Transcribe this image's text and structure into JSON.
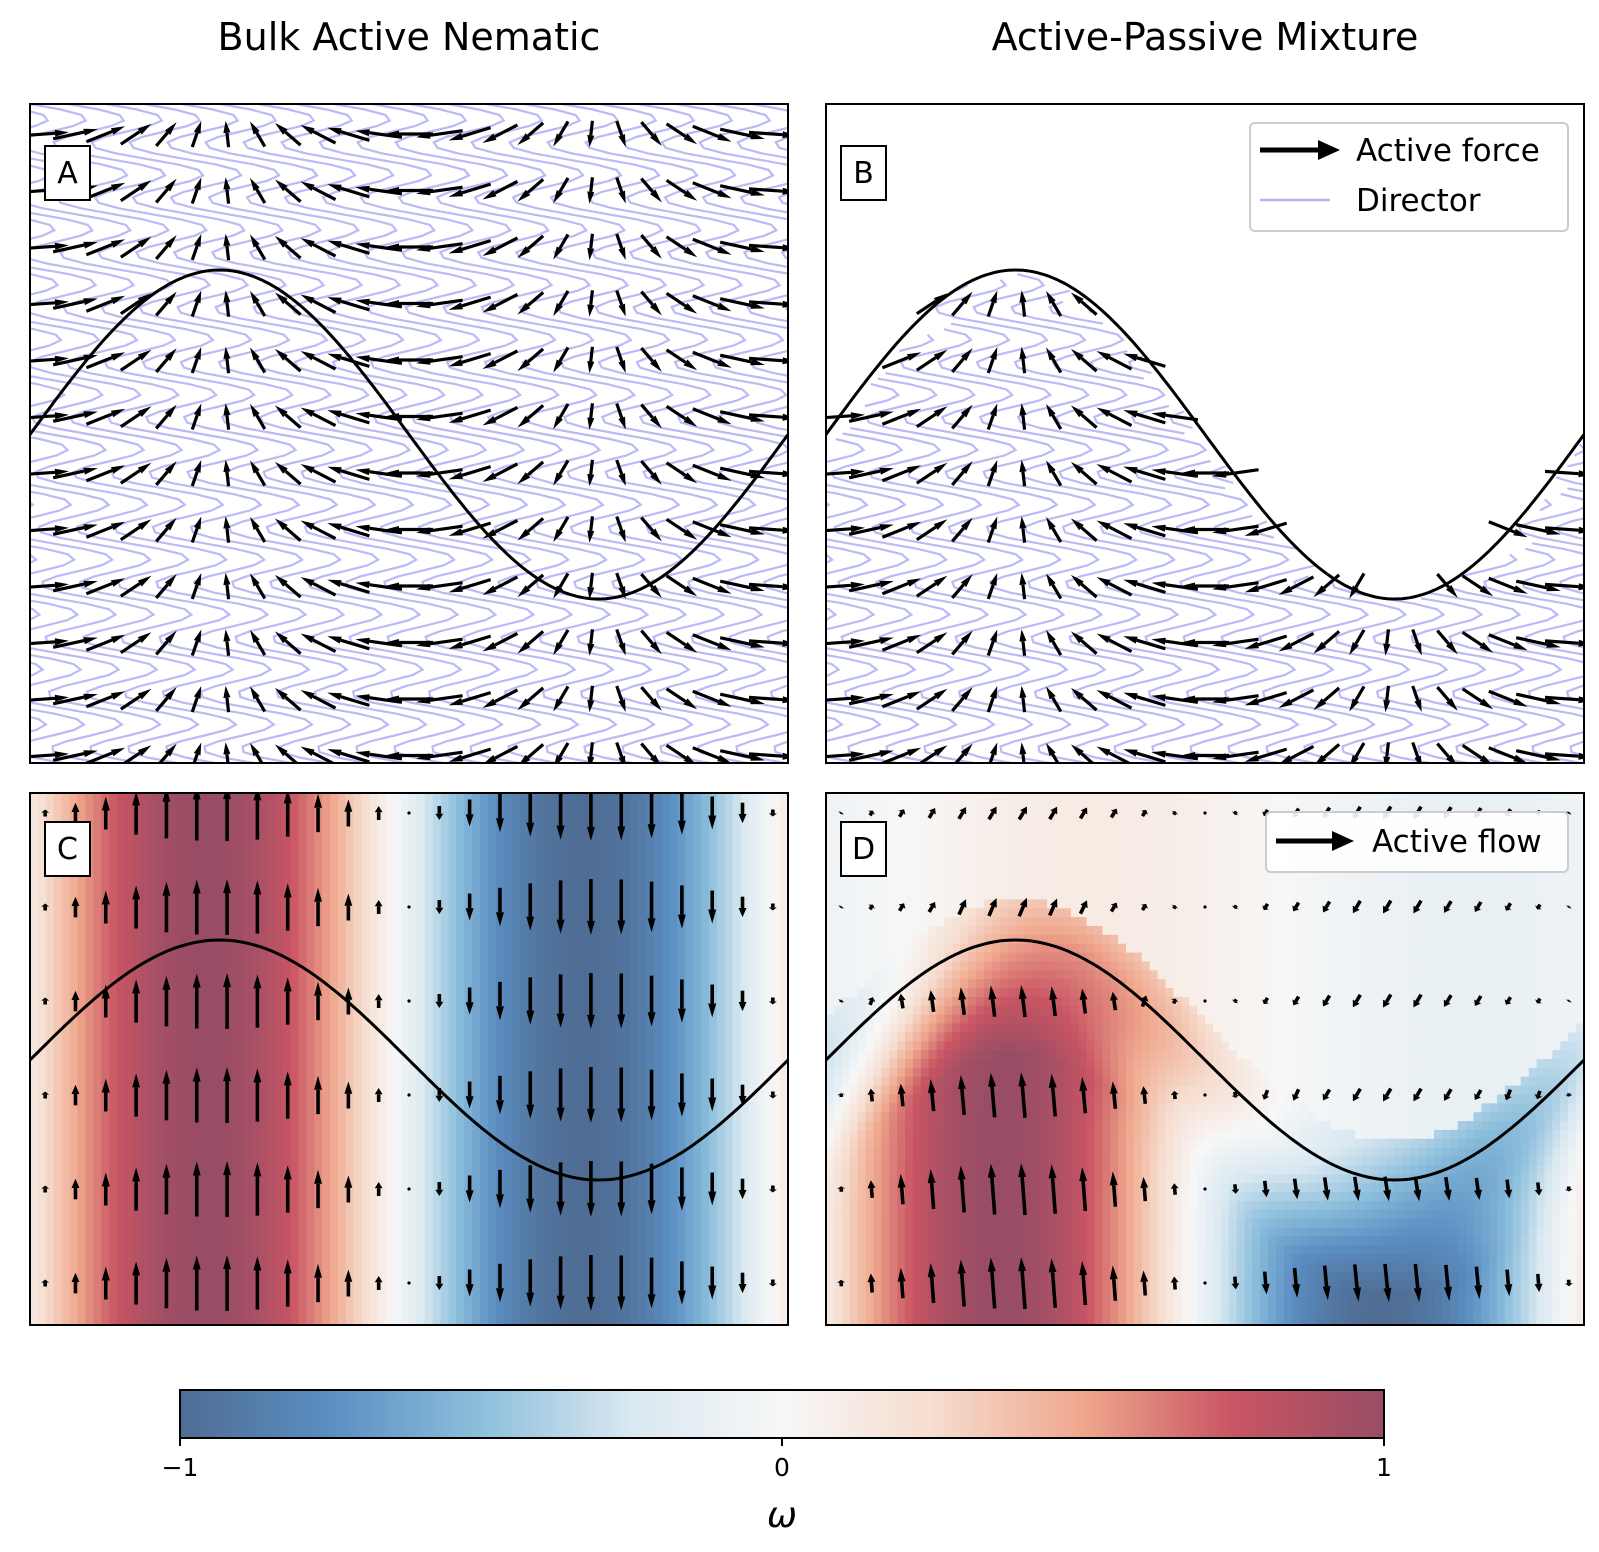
{
  "figure": {
    "column_titles": [
      "Bulk Active Nematic",
      "Active-Passive Mixture"
    ]
  },
  "colors": {
    "arrow": "#000000",
    "director": "#b3b3f5",
    "interface_curve": "#000000",
    "frame": "#000000",
    "colormap": [
      "#4f6d94",
      "#5b8ec2",
      "#8dbfdc",
      "#d9e8f1",
      "#f7f7f7",
      "#f6ddcf",
      "#efa78d",
      "#c85563",
      "#984d65"
    ]
  },
  "chart_data": [
    {
      "panel": "A",
      "type": "quiver",
      "title": "Bulk Active Nematic",
      "quantity": "active force",
      "field": "bulk",
      "background": "director field"
    },
    {
      "panel": "B",
      "type": "quiver",
      "title": "Active-Passive Mixture",
      "quantity": "active force",
      "field": "mixture",
      "background": "director field",
      "legend": {
        "placement": "top-right",
        "entries": [
          "Active force",
          "Director"
        ]
      }
    },
    {
      "panel": "C",
      "type": "quiver",
      "quantity": "flow velocity",
      "field": "bulk",
      "background": "heatmap of ω"
    },
    {
      "panel": "D",
      "type": "quiver",
      "quantity": "active flow",
      "field": "mixture",
      "background": "heatmap of ω",
      "legend": {
        "placement": "top-right",
        "entries": [
          "Active flow"
        ]
      }
    }
  ],
  "colorbar": {
    "label": "ω",
    "range": [
      -1,
      1
    ],
    "ticks": [
      {
        "value": -1,
        "label": "−1"
      },
      {
        "value": 0,
        "label": "0"
      },
      {
        "value": 1,
        "label": "1"
      }
    ]
  }
}
